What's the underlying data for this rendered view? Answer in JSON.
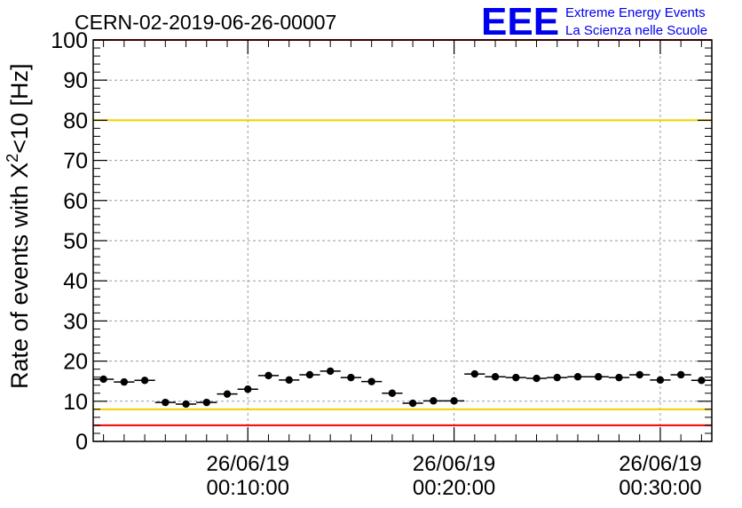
{
  "chart_data": {
    "type": "scatter",
    "title": "CERN-02-2019-06-26-00007",
    "ylabel_main": "Rate of events with X",
    "ylabel_sup": "2",
    "ylabel_tail": "<10 [Hz]",
    "ylim": [
      0,
      100
    ],
    "yticks": [
      0,
      10,
      20,
      30,
      40,
      50,
      60,
      70,
      80,
      90,
      100
    ],
    "xlim_minutes": [
      2.5,
      32.5
    ],
    "xticks": [
      {
        "minute": 10,
        "date": "26/06/19",
        "time": "00:10:00"
      },
      {
        "minute": 20,
        "date": "26/06/19",
        "time": "00:20:00"
      },
      {
        "minute": 30,
        "date": "26/06/19",
        "time": "00:30:00"
      }
    ],
    "grid": true,
    "bin_width_minutes": 1,
    "x_minutes": [
      3,
      4,
      5,
      6,
      7,
      8,
      9,
      10,
      11,
      12,
      13,
      14,
      15,
      16,
      17,
      18,
      19,
      20,
      21,
      22,
      23,
      24,
      25,
      26,
      27,
      28,
      29,
      30,
      31,
      32
    ],
    "values": [
      15.5,
      14.8,
      15.2,
      9.7,
      9.3,
      9.7,
      11.8,
      13.0,
      16.4,
      15.3,
      16.6,
      17.5,
      15.9,
      14.9,
      12.0,
      9.5,
      10.1,
      10.1,
      16.8,
      16.1,
      15.9,
      15.7,
      15.9,
      16.1,
      16.1,
      15.9,
      16.6,
      15.3,
      16.6,
      15.2
    ],
    "reference_lines": [
      {
        "value": 80,
        "color": "#f0d000"
      },
      {
        "value": 8,
        "color": "#f0d000"
      },
      {
        "value": 100,
        "color": "#ee0000"
      },
      {
        "value": 4,
        "color": "#ee0000"
      }
    ]
  },
  "logo": {
    "mark": "EEE",
    "line1": "Extreme Energy Events",
    "line2": "La Scienza nelle Scuole",
    "color": "#0000ee"
  }
}
